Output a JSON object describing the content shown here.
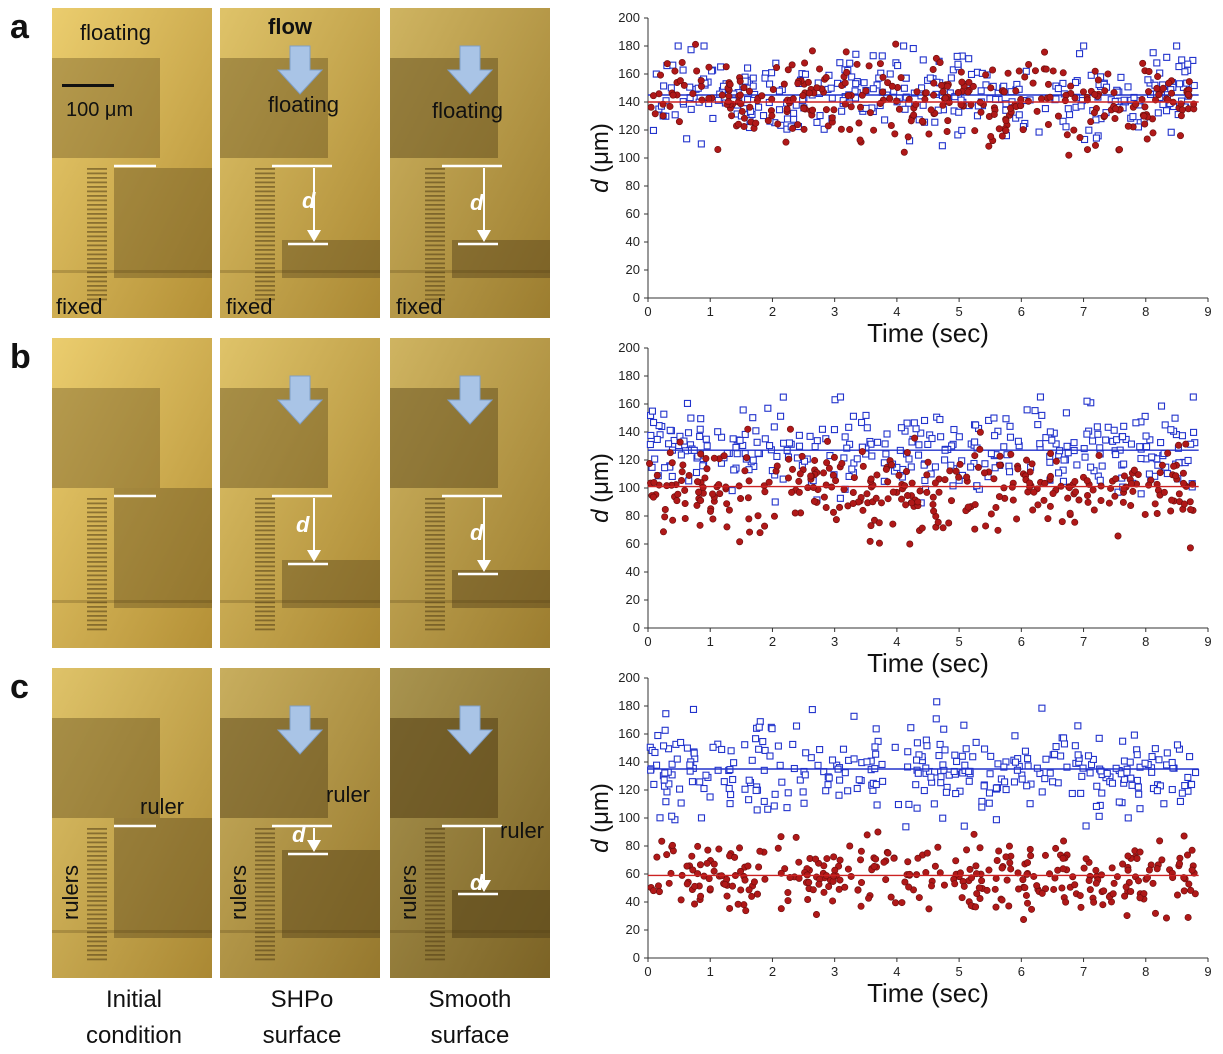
{
  "panels": [
    {
      "letter": "a",
      "images": [
        {
          "labels": [
            "floating",
            "100 μm",
            "fixed"
          ]
        },
        {
          "labels": [
            "flow",
            "floating",
            "fixed"
          ],
          "d": "d"
        },
        {
          "labels": [
            "floating",
            "fixed"
          ],
          "d": "d"
        }
      ]
    },
    {
      "letter": "b",
      "images": [
        {
          "labels": []
        },
        {
          "labels": [],
          "d": "d"
        },
        {
          "labels": [],
          "d": "d"
        }
      ]
    },
    {
      "letter": "c",
      "images": [
        {
          "labels": [
            "ruler",
            "rulers"
          ]
        },
        {
          "labels": [
            "ruler",
            "rulers"
          ],
          "d": "d"
        },
        {
          "labels": [
            "ruler",
            "rulers"
          ],
          "d": "d"
        }
      ]
    }
  ],
  "column_captions": [
    {
      "line1": "Initial",
      "line2": "condition"
    },
    {
      "line1": "SHPo",
      "line2": "surface"
    },
    {
      "line1": "Smooth",
      "line2": "surface"
    }
  ],
  "colors": {
    "shpo_series": "#2233cc",
    "smooth_series": "#cc2222",
    "smooth_fill": "#b01818",
    "flow_arrow": "#a9c4e6"
  },
  "chart_data": [
    {
      "type": "scatter",
      "xlabel": "Time (sec)",
      "ylabel_italic": "d",
      "ylabel_unit": " (μm)",
      "xlim": [
        0,
        9
      ],
      "ylim": [
        0,
        200
      ],
      "xticks": [
        0,
        1,
        2,
        3,
        4,
        5,
        6,
        7,
        8,
        9
      ],
      "yticks": [
        0,
        20,
        40,
        60,
        80,
        100,
        120,
        140,
        160,
        180,
        200
      ],
      "series": [
        {
          "marker": "open-square",
          "color": "#2233cc",
          "mean": 145,
          "spread": 14,
          "min": 105,
          "max": 180,
          "count": 330
        },
        {
          "marker": "filled-circle",
          "color": "#cc2222",
          "mean": 140,
          "spread": 16,
          "min": 102,
          "max": 192,
          "count": 330
        }
      ]
    },
    {
      "type": "scatter",
      "xlabel": "Time (sec)",
      "ylabel_italic": "d",
      "ylabel_unit": " (μm)",
      "xlim": [
        0,
        9
      ],
      "ylim": [
        0,
        200
      ],
      "xticks": [
        0,
        1,
        2,
        3,
        4,
        5,
        6,
        7,
        8,
        9
      ],
      "yticks": [
        0,
        20,
        40,
        60,
        80,
        100,
        120,
        140,
        160,
        180,
        200
      ],
      "series": [
        {
          "marker": "open-square",
          "color": "#2233cc",
          "mean": 127,
          "spread": 14,
          "min": 60,
          "max": 165,
          "count": 330
        },
        {
          "marker": "filled-circle",
          "color": "#cc2222",
          "mean": 101,
          "spread": 15,
          "min": 55,
          "max": 142,
          "count": 330
        }
      ]
    },
    {
      "type": "scatter",
      "xlabel": "Time (sec)",
      "ylabel_italic": "d",
      "ylabel_unit": " (μm)",
      "xlim": [
        0,
        9
      ],
      "ylim": [
        0,
        200
      ],
      "xticks": [
        0,
        1,
        2,
        3,
        4,
        5,
        6,
        7,
        8,
        9
      ],
      "yticks": [
        0,
        20,
        40,
        60,
        80,
        100,
        120,
        140,
        160,
        180,
        200
      ],
      "series": [
        {
          "marker": "open-square",
          "color": "#2233cc",
          "mean": 135,
          "spread": 16,
          "min": 88,
          "max": 183,
          "count": 330
        },
        {
          "marker": "filled-circle",
          "color": "#cc2222",
          "mean": 59,
          "spread": 13,
          "min": 10,
          "max": 90,
          "count": 330
        }
      ]
    }
  ]
}
